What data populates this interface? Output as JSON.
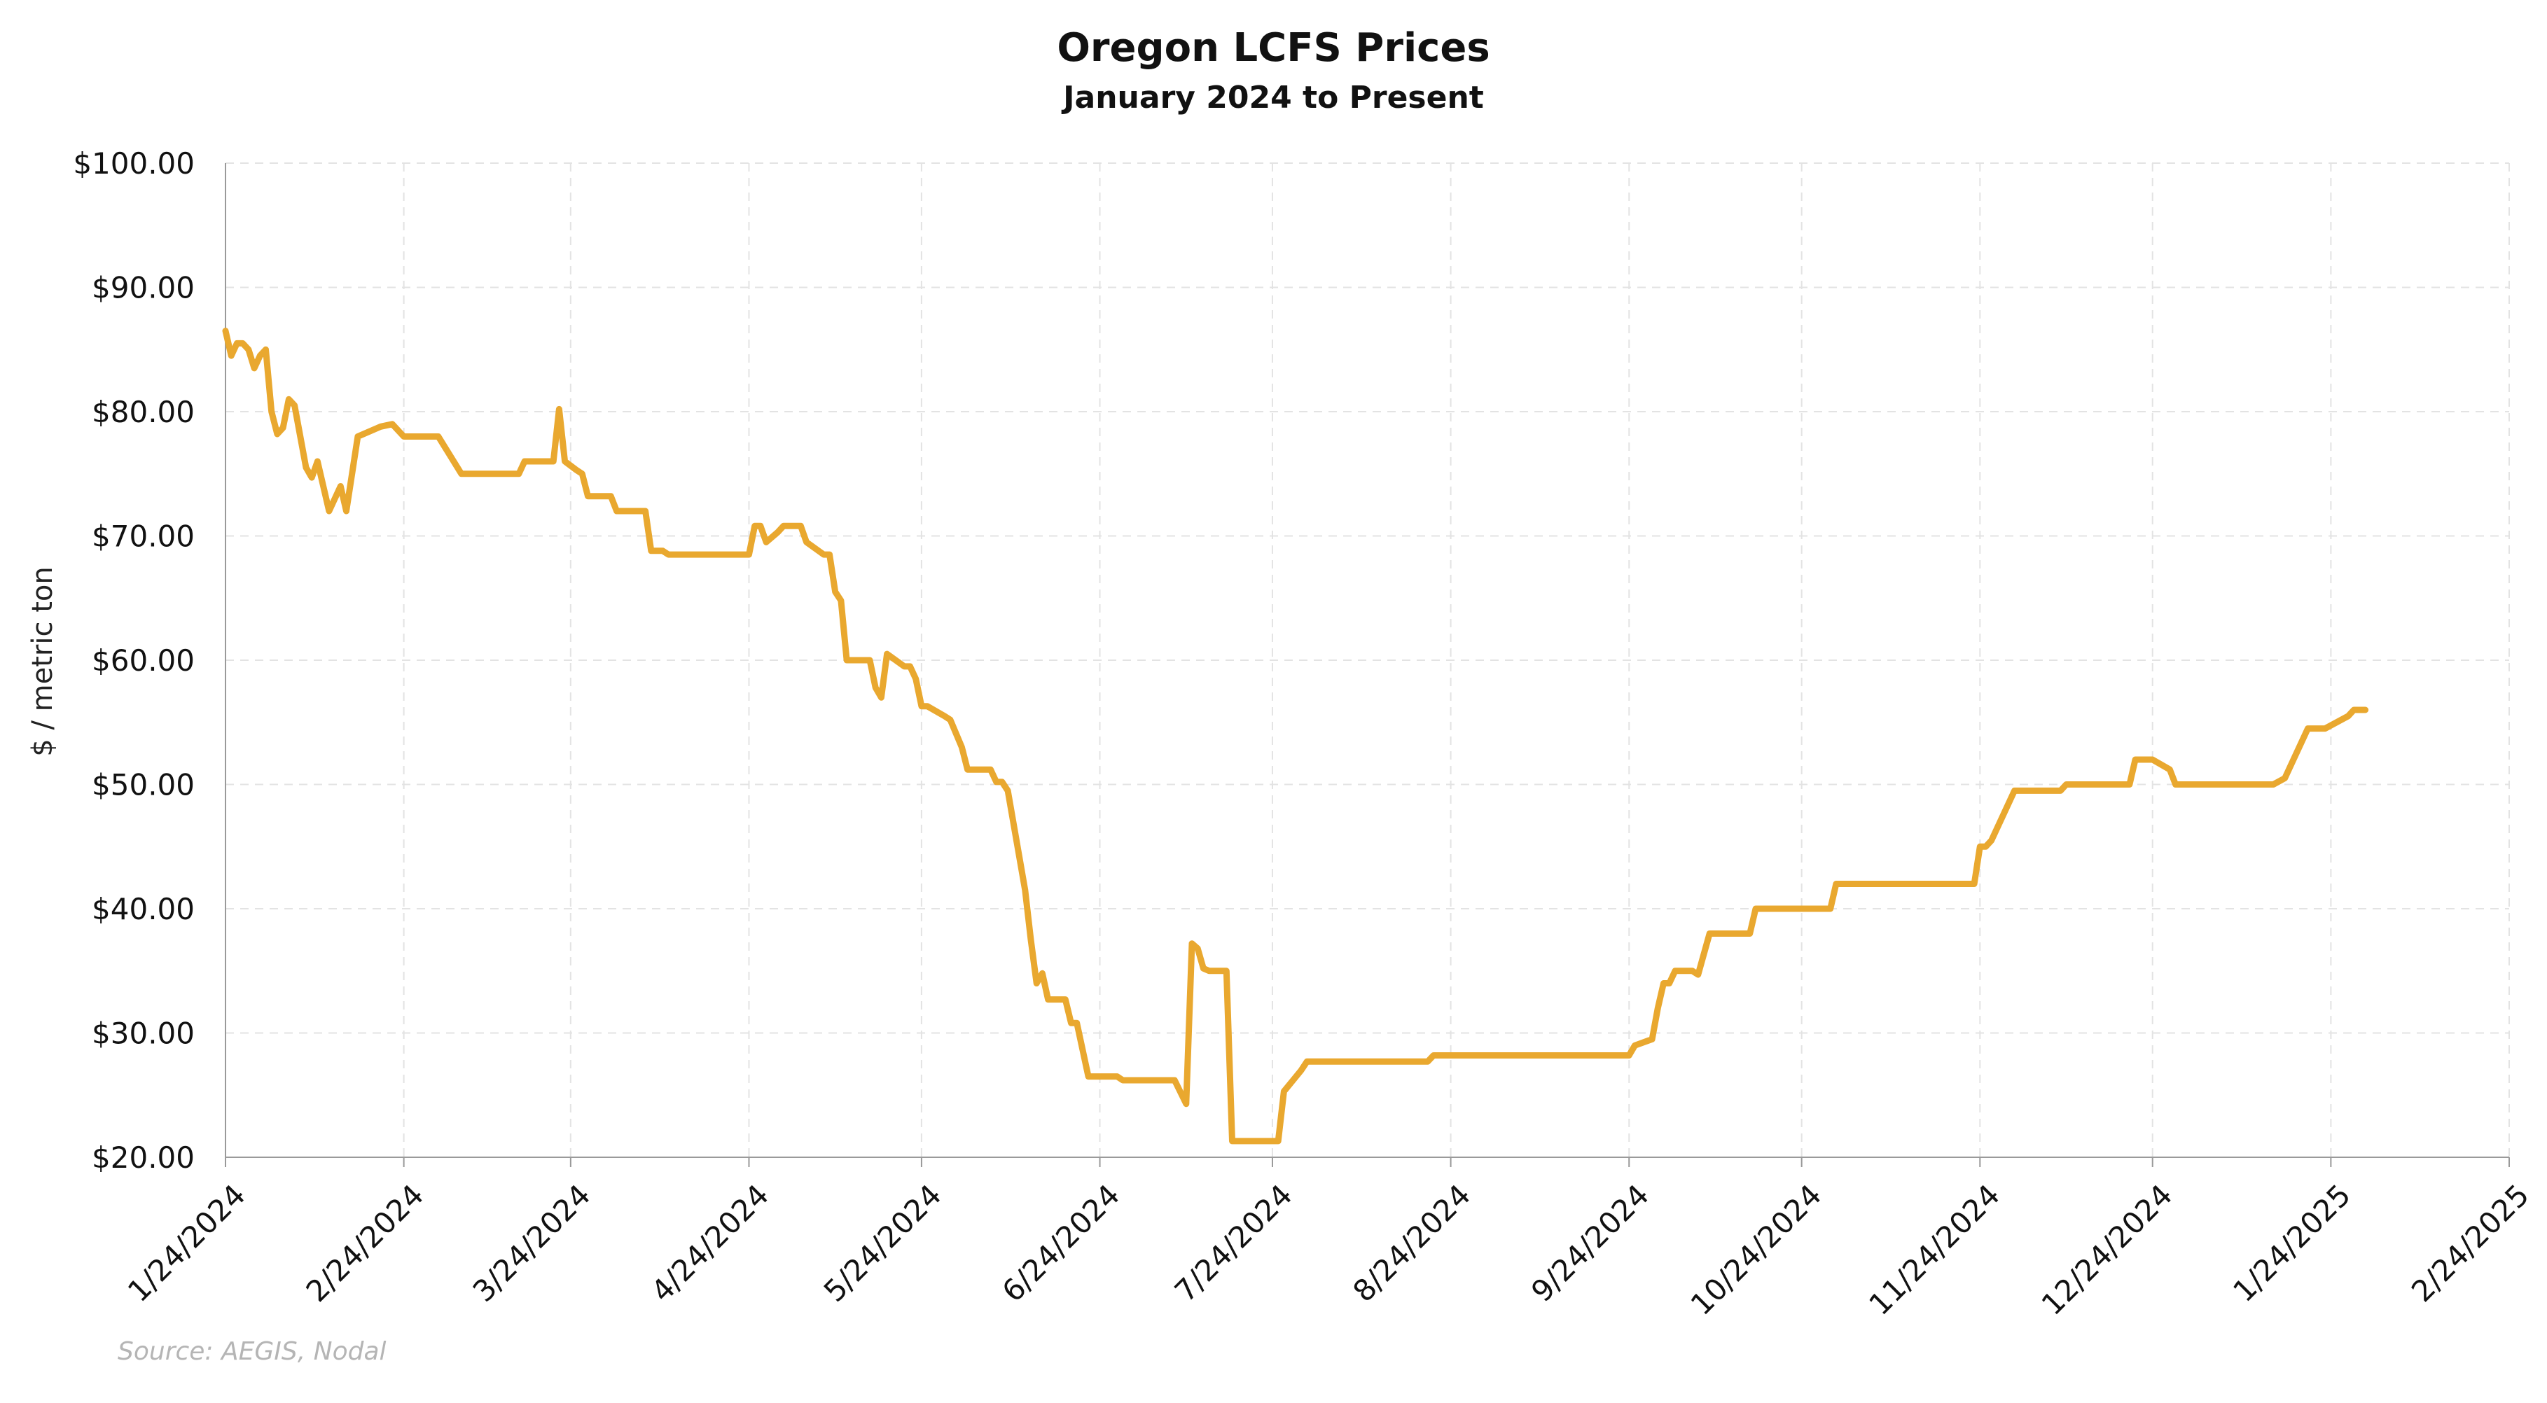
{
  "chart_data": {
    "type": "line",
    "title": "Oregon LCFS Prices",
    "subtitle": "January 2024 to Present",
    "ylabel": "$ / metric ton",
    "xlabel": "",
    "source": "Source: AEGIS, Nodal",
    "ylim": [
      20,
      100
    ],
    "xlim": [
      "2024-01-24",
      "2025-02-24"
    ],
    "yticks": [
      20,
      30,
      40,
      50,
      60,
      70,
      80,
      90,
      100
    ],
    "ytick_labels": [
      "$20.00",
      "$30.00",
      "$40.00",
      "$50.00",
      "$60.00",
      "$70.00",
      "$80.00",
      "$90.00",
      "$100.00"
    ],
    "xticks": [
      "2024-01-24",
      "2024-02-24",
      "2024-03-24",
      "2024-04-24",
      "2024-05-24",
      "2024-06-24",
      "2024-07-24",
      "2024-08-24",
      "2024-09-24",
      "2024-10-24",
      "2024-11-24",
      "2024-12-24",
      "2025-01-24",
      "2025-02-24"
    ],
    "xtick_labels": [
      "1/24/2024",
      "2/24/2024",
      "3/24/2024",
      "4/24/2024",
      "5/24/2024",
      "6/24/2024",
      "7/24/2024",
      "8/24/2024",
      "9/24/2024",
      "10/24/2024",
      "11/24/2024",
      "12/24/2024",
      "1/24/2025",
      "2/24/2025"
    ],
    "grid": true,
    "line_color": "#E9A82F",
    "series": [
      {
        "points": [
          [
            "2024-01-24",
            86.5
          ],
          [
            "2024-01-25",
            84.5
          ],
          [
            "2024-01-26",
            85.5
          ],
          [
            "2024-01-27",
            85.5
          ],
          [
            "2024-01-28",
            85.0
          ],
          [
            "2024-01-29",
            83.5
          ],
          [
            "2024-01-30",
            84.5
          ],
          [
            "2024-01-31",
            85.0
          ],
          [
            "2024-02-01",
            80.0
          ],
          [
            "2024-02-02",
            78.2
          ],
          [
            "2024-02-03",
            78.7
          ],
          [
            "2024-02-04",
            81.0
          ],
          [
            "2024-02-05",
            80.5
          ],
          [
            "2024-02-06",
            78.0
          ],
          [
            "2024-02-07",
            75.5
          ],
          [
            "2024-02-08",
            74.7
          ],
          [
            "2024-02-09",
            76.0
          ],
          [
            "2024-02-11",
            72.0
          ],
          [
            "2024-02-13",
            74.0
          ],
          [
            "2024-02-14",
            72.0
          ],
          [
            "2024-02-16",
            78.0
          ],
          [
            "2024-02-20",
            78.8
          ],
          [
            "2024-02-22",
            79.0
          ],
          [
            "2024-02-24",
            78.0
          ],
          [
            "2024-03-01",
            78.0
          ],
          [
            "2024-03-05",
            75.0
          ],
          [
            "2024-03-10",
            75.0
          ],
          [
            "2024-03-15",
            75.0
          ],
          [
            "2024-03-16",
            76.0
          ],
          [
            "2024-03-21",
            76.0
          ],
          [
            "2024-03-22",
            80.2
          ],
          [
            "2024-03-23",
            76.0
          ],
          [
            "2024-03-25",
            75.3
          ],
          [
            "2024-03-26",
            75.0
          ],
          [
            "2024-03-27",
            73.2
          ],
          [
            "2024-03-31",
            73.2
          ],
          [
            "2024-04-01",
            72.0
          ],
          [
            "2024-04-06",
            72.0
          ],
          [
            "2024-04-07",
            68.8
          ],
          [
            "2024-04-09",
            68.8
          ],
          [
            "2024-04-10",
            68.5
          ],
          [
            "2024-04-24",
            68.5
          ],
          [
            "2024-04-25",
            70.8
          ],
          [
            "2024-04-26",
            70.8
          ],
          [
            "2024-04-27",
            69.5
          ],
          [
            "2024-04-29",
            70.3
          ],
          [
            "2024-04-30",
            70.8
          ],
          [
            "2024-05-03",
            70.8
          ],
          [
            "2024-05-04",
            69.5
          ],
          [
            "2024-05-07",
            68.5
          ],
          [
            "2024-05-08",
            68.5
          ],
          [
            "2024-05-09",
            65.5
          ],
          [
            "2024-05-10",
            64.8
          ],
          [
            "2024-05-11",
            60.0
          ],
          [
            "2024-05-15",
            60.0
          ],
          [
            "2024-05-16",
            57.8
          ],
          [
            "2024-05-17",
            57.0
          ],
          [
            "2024-05-18",
            60.5
          ],
          [
            "2024-05-21",
            59.5
          ],
          [
            "2024-05-22",
            59.5
          ],
          [
            "2024-05-23",
            58.5
          ],
          [
            "2024-05-24",
            56.3
          ],
          [
            "2024-05-25",
            56.3
          ],
          [
            "2024-05-28",
            55.5
          ],
          [
            "2024-05-29",
            55.2
          ],
          [
            "2024-05-31",
            53.0
          ],
          [
            "2024-06-01",
            51.2
          ],
          [
            "2024-06-05",
            51.2
          ],
          [
            "2024-06-06",
            50.2
          ],
          [
            "2024-06-07",
            50.2
          ],
          [
            "2024-06-08",
            49.5
          ],
          [
            "2024-06-11",
            41.5
          ],
          [
            "2024-06-12",
            37.5
          ],
          [
            "2024-06-13",
            34.0
          ],
          [
            "2024-06-14",
            34.8
          ],
          [
            "2024-06-15",
            32.7
          ],
          [
            "2024-06-18",
            32.7
          ],
          [
            "2024-06-19",
            30.8
          ],
          [
            "2024-06-20",
            30.8
          ],
          [
            "2024-06-22",
            26.5
          ],
          [
            "2024-06-27",
            26.5
          ],
          [
            "2024-06-28",
            26.2
          ],
          [
            "2024-07-07",
            26.2
          ],
          [
            "2024-07-09",
            24.3
          ],
          [
            "2024-07-10",
            37.2
          ],
          [
            "2024-07-11",
            36.8
          ],
          [
            "2024-07-12",
            35.2
          ],
          [
            "2024-07-13",
            35.0
          ],
          [
            "2024-07-16",
            35.0
          ],
          [
            "2024-07-17",
            21.3
          ],
          [
            "2024-07-25",
            21.3
          ],
          [
            "2024-07-26",
            25.3
          ],
          [
            "2024-07-29",
            27.0
          ],
          [
            "2024-07-30",
            27.7
          ],
          [
            "2024-08-20",
            27.7
          ],
          [
            "2024-08-21",
            28.2
          ],
          [
            "2024-09-24",
            28.2
          ],
          [
            "2024-09-25",
            29.0
          ],
          [
            "2024-09-28",
            29.5
          ],
          [
            "2024-09-29",
            32.0
          ],
          [
            "2024-09-30",
            34.0
          ],
          [
            "2024-10-01",
            34.0
          ],
          [
            "2024-10-02",
            35.0
          ],
          [
            "2024-10-05",
            35.0
          ],
          [
            "2024-10-06",
            34.7
          ],
          [
            "2024-10-08",
            38.0
          ],
          [
            "2024-10-15",
            38.0
          ],
          [
            "2024-10-16",
            40.0
          ],
          [
            "2024-10-29",
            40.0
          ],
          [
            "2024-10-30",
            42.0
          ],
          [
            "2024-11-23",
            42.0
          ],
          [
            "2024-11-24",
            45.0
          ],
          [
            "2024-11-25",
            45.0
          ],
          [
            "2024-11-26",
            45.5
          ],
          [
            "2024-11-30",
            49.5
          ],
          [
            "2024-12-08",
            49.5
          ],
          [
            "2024-12-09",
            50.0
          ],
          [
            "2024-12-20",
            50.0
          ],
          [
            "2024-12-21",
            52.0
          ],
          [
            "2024-12-24",
            52.0
          ],
          [
            "2024-12-27",
            51.2
          ],
          [
            "2024-12-28",
            50.0
          ],
          [
            "2025-01-14",
            50.0
          ],
          [
            "2025-01-16",
            50.5
          ],
          [
            "2025-01-20",
            54.5
          ],
          [
            "2025-01-23",
            54.5
          ],
          [
            "2025-01-27",
            55.5
          ],
          [
            "2025-01-28",
            56.0
          ],
          [
            "2025-01-30",
            56.0
          ]
        ]
      }
    ]
  }
}
